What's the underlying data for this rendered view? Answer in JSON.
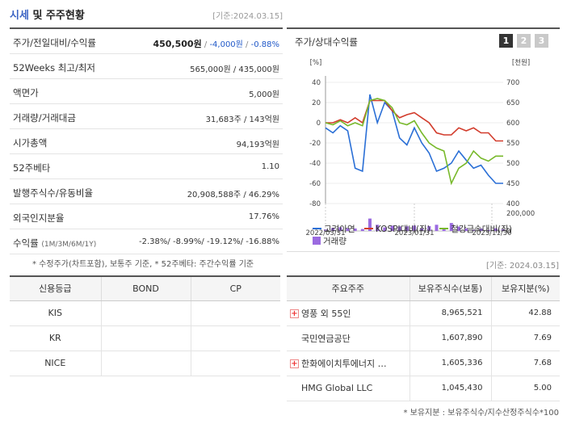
{
  "header": {
    "title_accent": "시세",
    "title_rest": " 및 주주현황",
    "date": "[기준:2024.03.15]"
  },
  "info": {
    "price": {
      "label": "주가/전일대비/수익률",
      "price": "450,500원",
      "sep1": " / ",
      "change": "-4,000원",
      "sep2": " / ",
      "rate": "-0.88%"
    },
    "week52": {
      "label": "52Weeks 최고/최저",
      "value": "565,000원 / 435,000원"
    },
    "face": {
      "label": "액면가",
      "value": "5,000원"
    },
    "volume": {
      "label": "거래량/거래대금",
      "value": "31,683주 / 143억원"
    },
    "mcap": {
      "label": "시가총액",
      "value": "94,193억원"
    },
    "beta": {
      "label": "52주베타",
      "value": "1.10"
    },
    "shares": {
      "label": "발행주식수/유동비율",
      "value": "20,908,588주 / 46.29%"
    },
    "foreign": {
      "label": "외국인지분율",
      "value": "17.76%"
    },
    "returns": {
      "label": "수익률",
      "label_sub": "(1M/3M/6M/1Y)",
      "r1": "-2.38%",
      "r2": "-8.99%",
      "r3": "-19.12%",
      "r4": "-16.88%"
    }
  },
  "note1": "* 수정주가(차트포함), 보통주 기준, * 52주베타: 주간수익률 기준",
  "chart": {
    "title": "주가/상대수익률",
    "pages": [
      "1",
      "2",
      "3"
    ],
    "legend": {
      "l1": "고려아연",
      "l2": "KOSPI대비(좌)",
      "l3": "철강금속대비(좌)",
      "l4": "거래량"
    }
  },
  "chart_data": {
    "type": "line",
    "left_axis_label": "[%]",
    "right_axis_label": "[천원]",
    "left_ticks": [
      "40",
      "20",
      "0",
      "-20",
      "-40",
      "-60",
      "-80"
    ],
    "right_ticks": [
      "700",
      "650",
      "600",
      "550",
      "500",
      "450",
      "400"
    ],
    "volume_ticks": [
      "200,000",
      "0"
    ],
    "x_labels": [
      "2022/03/31",
      "2023/01/31",
      "2023/11/30"
    ],
    "ylim_left": [
      -80,
      40
    ],
    "ylim_right": [
      400,
      700
    ],
    "colors": {
      "price": "#2a6fd6",
      "kospi": "#d23c2c",
      "steel": "#78b92b",
      "volume": "#9b6be0"
    },
    "series": [
      {
        "name": "고려아연",
        "values": [
          -5,
          -10,
          -3,
          -8,
          -45,
          -48,
          28,
          0,
          20,
          12,
          -15,
          -22,
          -5,
          -20,
          -30,
          -48,
          -45,
          -40,
          -28,
          -37,
          -45,
          -42,
          -52,
          -60,
          -60
        ]
      },
      {
        "name": "KOSPI대비(좌)",
        "values": [
          0,
          0,
          3,
          0,
          5,
          0,
          22,
          22,
          22,
          12,
          5,
          8,
          10,
          5,
          0,
          -10,
          -12,
          -12,
          -5,
          -8,
          -5,
          -10,
          -10,
          -18,
          -18
        ]
      },
      {
        "name": "철강금속대비(좌)",
        "values": [
          0,
          -2,
          2,
          -3,
          0,
          -3,
          22,
          24,
          22,
          15,
          0,
          -2,
          2,
          -10,
          -20,
          -25,
          -28,
          -60,
          -45,
          -40,
          -28,
          -35,
          -38,
          -33,
          -33
        ]
      },
      {
        "name": "거래량",
        "values": [
          18000,
          36000,
          42000,
          32000,
          28000,
          22000,
          140000,
          70000,
          40000,
          60000,
          50000,
          52000,
          60000,
          30000,
          55000,
          70000,
          18000,
          90000,
          50000,
          30000,
          15000,
          28000,
          12000,
          30000,
          20000
        ]
      }
    ]
  },
  "note2": "[기준: 2024.03.15]",
  "credit": {
    "headers": [
      "신용등급",
      "BOND",
      "CP"
    ],
    "rows": [
      {
        "agency": "KIS",
        "bond": "",
        "cp": ""
      },
      {
        "agency": "KR",
        "bond": "",
        "cp": ""
      },
      {
        "agency": "NICE",
        "bond": "",
        "cp": ""
      }
    ]
  },
  "shareholders": {
    "headers": [
      "주요주주",
      "보유주식수(보통)",
      "보유지분(%)"
    ],
    "rows": [
      {
        "name": "영풍 외 55인",
        "shares": "8,965,521",
        "pct": "42.88",
        "expand": true
      },
      {
        "name": "국민연금공단",
        "shares": "1,607,890",
        "pct": "7.69",
        "expand": false
      },
      {
        "name": "한화에이치투에너지 …",
        "shares": "1,605,336",
        "pct": "7.68",
        "expand": true
      },
      {
        "name": "HMG Global LLC",
        "shares": "1,045,430",
        "pct": "5.00",
        "expand": false
      }
    ],
    "expand_icon": "+"
  },
  "note3": "* 보유지분 : 보유주식수/지수산정주식수*100"
}
